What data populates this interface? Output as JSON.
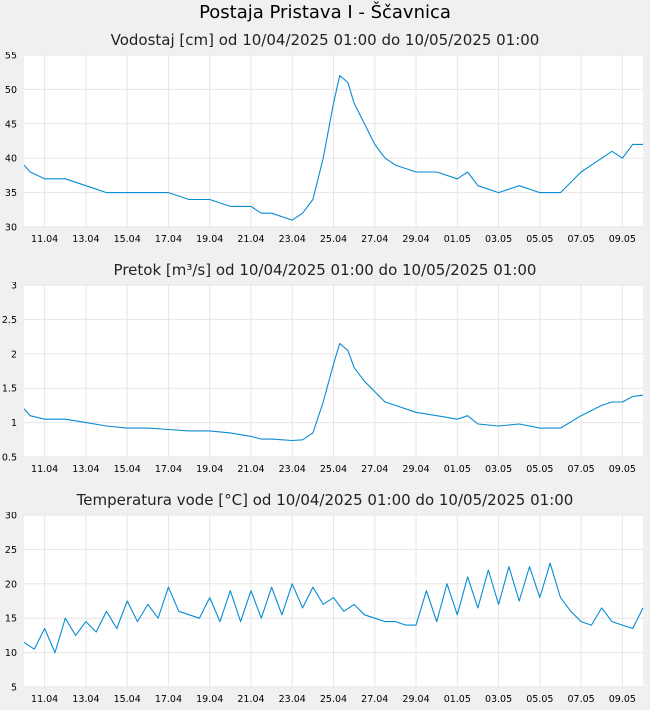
{
  "page_title": "Postaja Pristava I - Ščavnica",
  "colors": {
    "series": "#0a8bd2",
    "plot_bg": "#ffffff",
    "grid": "#e6e6e6",
    "page_bg": "#f0f0f0"
  },
  "x_ticks": [
    "11.04",
    "13.04",
    "15.04",
    "17.04",
    "19.04",
    "21.04",
    "23.04",
    "25.04",
    "27.04",
    "29.04",
    "01.05",
    "03.05",
    "05.05",
    "07.05",
    "09.05"
  ],
  "chart_data": [
    {
      "type": "line",
      "title": "Vodostaj [cm] od 10/04/2025 01:00 do 10/05/2025 01:00",
      "x_range_days": [
        0,
        30
      ],
      "ylim": [
        30,
        55
      ],
      "y_ticks": [
        30,
        35,
        40,
        45,
        50,
        55
      ],
      "grid": true,
      "series": [
        {
          "x": [
            0,
            0.3,
            1,
            2,
            3,
            4,
            5,
            6,
            7,
            8,
            9,
            10,
            11,
            11.5,
            12,
            13,
            13.5,
            14,
            14.5,
            15,
            15.3,
            15.7,
            16,
            16.5,
            17,
            17.5,
            18,
            19,
            20,
            21,
            21.5,
            22,
            23,
            24,
            25,
            26,
            27,
            28,
            28.5,
            29,
            29.5,
            30
          ],
          "y": [
            39,
            38,
            37,
            37,
            36,
            35,
            35,
            35,
            35,
            34,
            34,
            33,
            33,
            32,
            32,
            31,
            32,
            34,
            40,
            48,
            52,
            51,
            48,
            45,
            42,
            40,
            39,
            38,
            38,
            37,
            38,
            36,
            35,
            36,
            35,
            35,
            38,
            40,
            41,
            40,
            42,
            42
          ]
        }
      ]
    },
    {
      "type": "line",
      "title": "Pretok [m³/s] od 10/04/2025 01:00 do 10/05/2025 01:00",
      "x_range_days": [
        0,
        30
      ],
      "ylim": [
        0.5,
        3
      ],
      "y_ticks": [
        "0.5",
        "1",
        "1.5",
        "2",
        "2.5",
        "3"
      ],
      "grid": true,
      "series": [
        {
          "x": [
            0,
            0.3,
            1,
            2,
            3,
            4,
            5,
            6,
            7,
            8,
            9,
            10,
            11,
            11.5,
            12,
            13,
            13.5,
            14,
            14.5,
            15,
            15.3,
            15.7,
            16,
            16.5,
            17,
            17.5,
            18,
            19,
            20,
            21,
            21.5,
            22,
            23,
            24,
            25,
            26,
            27,
            28,
            28.5,
            29,
            29.5,
            30
          ],
          "y": [
            1.2,
            1.1,
            1.05,
            1.05,
            1.0,
            0.95,
            0.92,
            0.92,
            0.9,
            0.88,
            0.88,
            0.85,
            0.8,
            0.76,
            0.76,
            0.74,
            0.75,
            0.85,
            1.3,
            1.85,
            2.15,
            2.05,
            1.8,
            1.6,
            1.45,
            1.3,
            1.25,
            1.15,
            1.1,
            1.05,
            1.1,
            0.98,
            0.95,
            0.98,
            0.92,
            0.92,
            1.1,
            1.25,
            1.3,
            1.3,
            1.38,
            1.4
          ]
        }
      ]
    },
    {
      "type": "line",
      "title": "Temperatura vode [°C] od 10/04/2025 01:00 do 10/05/2025 01:00",
      "x_range_days": [
        0,
        30
      ],
      "ylim": [
        5,
        30
      ],
      "y_ticks": [
        5,
        10,
        15,
        20,
        25,
        30
      ],
      "grid": true,
      "series": [
        {
          "x": [
            0,
            0.5,
            1,
            1.5,
            2,
            2.5,
            3,
            3.5,
            4,
            4.5,
            5,
            5.5,
            6,
            6.5,
            7,
            7.5,
            8,
            8.5,
            9,
            9.5,
            10,
            10.5,
            11,
            11.5,
            12,
            12.5,
            13,
            13.5,
            14,
            14.5,
            15,
            15.5,
            16,
            16.5,
            17,
            17.5,
            18,
            18.5,
            19,
            19.5,
            20,
            20.5,
            21,
            21.5,
            22,
            22.5,
            23,
            23.5,
            24,
            24.5,
            25,
            25.5,
            26,
            26.5,
            27,
            27.5,
            28,
            28.5,
            29,
            29.5,
            30
          ],
          "y": [
            11.5,
            10.5,
            13.5,
            10,
            15,
            12.5,
            14.5,
            13,
            16,
            13.5,
            17.5,
            14.5,
            17,
            15,
            19.5,
            16,
            15.5,
            15,
            18,
            14.5,
            19,
            14.5,
            19,
            15,
            19.5,
            15.5,
            20,
            16.5,
            19.5,
            17,
            18,
            16,
            17,
            15.5,
            15,
            14.5,
            14.5,
            14,
            14,
            19,
            14.5,
            20,
            15.5,
            21,
            16.5,
            22,
            17,
            22.5,
            17.5,
            22.5,
            18,
            23,
            18,
            16,
            14.5,
            14,
            16.5,
            14.5,
            14,
            13.5,
            16.5
          ]
        }
      ]
    }
  ]
}
